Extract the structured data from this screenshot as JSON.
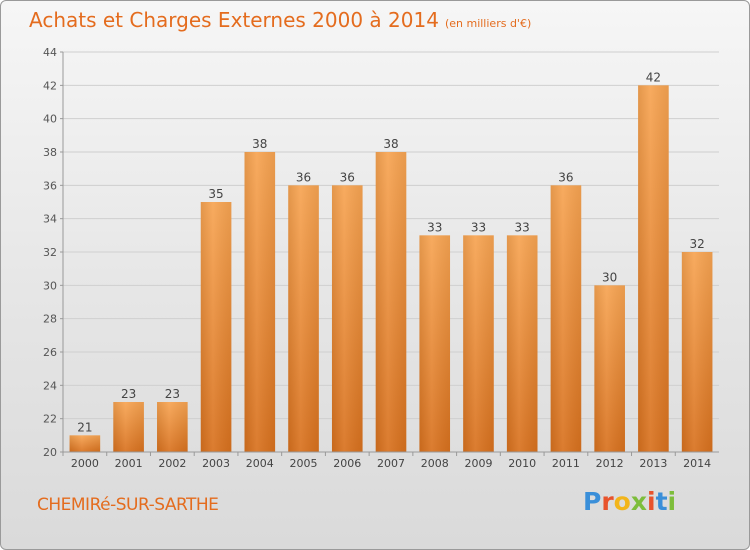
{
  "chart_data": {
    "type": "bar",
    "title": "Achats et Charges Externes 2000 à 2014",
    "subtitle": "(en milliers d'€)",
    "categories": [
      "2000",
      "2001",
      "2002",
      "2003",
      "2004",
      "2005",
      "2006",
      "2007",
      "2008",
      "2009",
      "2010",
      "2011",
      "2012",
      "2013",
      "2014"
    ],
    "values": [
      21,
      23,
      23,
      35,
      38,
      36,
      36,
      38,
      33,
      33,
      33,
      36,
      30,
      42,
      32
    ],
    "data_labels": [
      "21",
      "23",
      "23",
      "35",
      "38",
      "36",
      "36",
      "38",
      "33",
      "33",
      "33",
      "36",
      "30",
      "42",
      "32"
    ],
    "ylim": [
      20,
      44
    ],
    "yticks": [
      "20",
      "22",
      "24",
      "26",
      "28",
      "30",
      "32",
      "34",
      "36",
      "38",
      "40",
      "42",
      "44"
    ],
    "grid": true,
    "legend": "none",
    "bar_color": "#f28c2c"
  },
  "footer": {
    "city": "CHEMIRé-SUR-SARTHE",
    "logo_letters": [
      "P",
      "r",
      "o",
      "x",
      "i",
      "t",
      "i"
    ],
    "logo_colors": [
      "#3a8fd9",
      "#e8532c",
      "#f2b51b",
      "#7dbd3b",
      "#e8532c",
      "#3a8fd9",
      "#7dbd3b"
    ]
  }
}
